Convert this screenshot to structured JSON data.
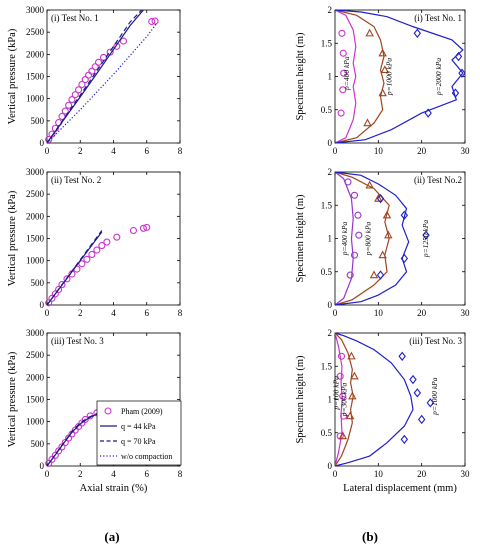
{
  "figure": {
    "label_a": "(a)",
    "label_b": "(b)"
  },
  "colors": {
    "axis": "#000000",
    "magenta": "#cc33cc",
    "brown": "#a0441e",
    "blue": "#1f1fcc",
    "navy": "#1a1a8c",
    "purple": "#9933cc"
  },
  "legend": {
    "entries": [
      "Pham (2009)",
      "q = 44 kPa",
      "q = 70 kPa",
      "w/o compaction"
    ]
  },
  "chart_data": [
    {
      "id": "a1",
      "type": "line",
      "title": "(i) Test No. 1",
      "xlabel": "",
      "ylabel": "Vertical pressure (kPa)",
      "xlim": [
        0,
        8
      ],
      "ylim": [
        0,
        3000
      ],
      "xticks": [
        0,
        2,
        4,
        6,
        8
      ],
      "yticks": [
        0,
        500,
        1000,
        1500,
        2000,
        2500,
        3000
      ],
      "series": [
        {
          "name": "Pham (2009)",
          "style": "markers-circle",
          "x": [
            0.1,
            0.3,
            0.5,
            0.7,
            0.9,
            1.1,
            1.3,
            1.5,
            1.7,
            1.9,
            2.1,
            2.3,
            2.5,
            2.7,
            2.9,
            3.1,
            3.4,
            3.8,
            4.2,
            4.6,
            6.3,
            6.5
          ],
          "y": [
            80,
            200,
            330,
            460,
            600,
            720,
            850,
            980,
            1090,
            1200,
            1320,
            1430,
            1530,
            1620,
            1720,
            1820,
            1930,
            2050,
            2180,
            2300,
            2740,
            2750
          ]
        },
        {
          "name": "q = 44 kPa",
          "style": "solid",
          "x": [
            0,
            1,
            2,
            3,
            4,
            5,
            5.8
          ],
          "y": [
            0,
            520,
            1040,
            1570,
            2110,
            2650,
            3000
          ]
        },
        {
          "name": "q = 70 kPa",
          "style": "dashed",
          "x": [
            0,
            1,
            2,
            3,
            4,
            5,
            5.7
          ],
          "y": [
            0,
            540,
            1080,
            1630,
            2180,
            2730,
            3000
          ]
        },
        {
          "name": "w/o compaction",
          "style": "dotted",
          "x": [
            0,
            2,
            4,
            6,
            6.6
          ],
          "y": [
            0,
            750,
            1550,
            2400,
            2700
          ]
        }
      ]
    },
    {
      "id": "a2",
      "type": "line",
      "title": "(ii) Test No. 2",
      "xlabel": "",
      "ylabel": "Vertical pressure (kPa)",
      "xlim": [
        0,
        8
      ],
      "ylim": [
        0,
        3000
      ],
      "xticks": [
        0,
        2,
        4,
        6,
        8
      ],
      "yticks": [
        0,
        500,
        1000,
        1500,
        2000,
        2500,
        3000
      ],
      "series": [
        {
          "name": "Pham (2009)",
          "style": "markers-circle",
          "x": [
            0.1,
            0.3,
            0.5,
            0.7,
            0.9,
            1.2,
            1.5,
            1.8,
            2.1,
            2.4,
            2.7,
            3.0,
            3.3,
            3.6,
            4.2,
            5.2,
            5.8,
            6.0
          ],
          "y": [
            50,
            150,
            250,
            350,
            460,
            590,
            700,
            810,
            930,
            1030,
            1140,
            1240,
            1340,
            1420,
            1530,
            1680,
            1730,
            1750
          ]
        },
        {
          "name": "q = 44 kPa",
          "style": "solid",
          "x": [
            0,
            1,
            2,
            3,
            3.3
          ],
          "y": [
            0,
            500,
            1000,
            1500,
            1650
          ]
        },
        {
          "name": "q = 70 kPa",
          "style": "dashed",
          "x": [
            0,
            1,
            2,
            3,
            3.3
          ],
          "y": [
            0,
            510,
            1020,
            1530,
            1680
          ]
        }
      ]
    },
    {
      "id": "a3",
      "type": "line",
      "title": "(iii) Test No. 3",
      "xlabel": "Axial strain (%)",
      "ylabel": "Vertical pressure (kPa)",
      "xlim": [
        0,
        8
      ],
      "ylim": [
        0,
        3000
      ],
      "xticks": [
        0,
        2,
        4,
        6,
        8
      ],
      "yticks": [
        0,
        500,
        1000,
        1500,
        2000,
        2500,
        3000
      ],
      "series": [
        {
          "name": "Pham (2009)",
          "style": "markers-circle",
          "x": [
            0.1,
            0.3,
            0.5,
            0.7,
            0.9,
            1.1,
            1.3,
            1.5,
            1.7,
            1.9,
            2.1,
            2.3,
            2.6,
            3.0,
            3.5,
            4.0
          ],
          "y": [
            60,
            150,
            240,
            340,
            430,
            530,
            630,
            720,
            810,
            890,
            970,
            1050,
            1130,
            1200,
            1270,
            1300
          ]
        },
        {
          "name": "q = 44 kPa",
          "style": "solid",
          "x": [
            0,
            0.5,
            1,
            1.5,
            2,
            2.5,
            3,
            3.3
          ],
          "y": [
            0,
            250,
            510,
            760,
            950,
            1080,
            1170,
            1200
          ]
        },
        {
          "name": "q = 70 kPa",
          "style": "dashed",
          "x": [
            0,
            0.5,
            1,
            1.5,
            2,
            2.5,
            3,
            3.3
          ],
          "y": [
            0,
            260,
            520,
            780,
            970,
            1100,
            1180,
            1210
          ]
        }
      ]
    },
    {
      "id": "b1",
      "type": "line",
      "title": "(i) Test No. 1",
      "xlabel": "",
      "ylabel": "Specimen height (m)",
      "xlim": [
        0,
        30
      ],
      "ylim": [
        0,
        2
      ],
      "xticks": [
        0,
        10,
        20,
        30
      ],
      "yticks": [
        0,
        0.5,
        1,
        1.5,
        2
      ],
      "series": [
        {
          "name": "p=400 kPa",
          "style": "solid",
          "color": "magenta",
          "x": [
            0,
            2.5,
            4.2,
            4.8,
            4.2,
            4.8,
            4.2,
            4.8,
            4.2,
            2.5,
            0
          ],
          "y": [
            0,
            0.08,
            0.35,
            0.6,
            0.85,
            1.0,
            1.2,
            1.45,
            1.7,
            1.92,
            2
          ]
        },
        {
          "name": "p=1000 kPa",
          "style": "solid",
          "color": "brown",
          "x": [
            0,
            5,
            9,
            11,
            10.5,
            11.3,
            10.5,
            11.3,
            10.5,
            9,
            5,
            0
          ],
          "y": [
            0,
            0.08,
            0.3,
            0.5,
            0.7,
            0.9,
            1.1,
            1.3,
            1.55,
            1.75,
            1.92,
            2
          ]
        },
        {
          "name": "p=2000 kPa",
          "style": "solid",
          "color": "blue",
          "x": [
            0,
            7,
            13,
            20,
            28,
            27,
            29.5,
            27,
            29.5,
            27,
            18,
            12,
            6,
            0
          ],
          "y": [
            0,
            0.05,
            0.2,
            0.45,
            0.65,
            0.85,
            1.05,
            1.25,
            1.4,
            1.55,
            1.75,
            1.9,
            1.97,
            2
          ]
        },
        {
          "name": "",
          "style": "markers-circle",
          "color": "magenta",
          "x": [
            1.4,
            1.8,
            2,
            1.9,
            1.6
          ],
          "y": [
            0.45,
            0.8,
            1.05,
            1.35,
            1.65
          ]
        },
        {
          "name": "",
          "style": "markers-triangle",
          "color": "brown",
          "x": [
            7.5,
            11,
            11.5,
            11,
            8
          ],
          "y": [
            0.3,
            0.75,
            1.1,
            1.35,
            1.65
          ]
        },
        {
          "name": "",
          "style": "markers-diamond",
          "color": "blue",
          "x": [
            21.5,
            27.8,
            29.3,
            28.5,
            19
          ],
          "y": [
            0.45,
            0.75,
            1.05,
            1.3,
            1.65
          ]
        }
      ],
      "annotations": [
        "p=400 kPa",
        "p=1000 kPa",
        "p=2000 kPa"
      ]
    },
    {
      "id": "b2",
      "type": "line",
      "title": "(ii) Test No.2",
      "xlabel": "",
      "ylabel": "Specimen height (m)",
      "xlim": [
        0,
        30
      ],
      "ylim": [
        0,
        2
      ],
      "xticks": [
        0,
        10,
        20,
        30
      ],
      "yticks": [
        0,
        0.5,
        1,
        1.5,
        2
      ],
      "series": [
        {
          "name": "p=400 kPa",
          "style": "solid",
          "color": "purple",
          "x": [
            0,
            2,
            3.8,
            4.2,
            3.8,
            4.2,
            3.8,
            2,
            0
          ],
          "y": [
            0,
            0.1,
            0.4,
            0.7,
            1.0,
            1.3,
            1.6,
            1.9,
            2
          ]
        },
        {
          "name": "p=800 kPa",
          "style": "solid",
          "color": "brown",
          "x": [
            0,
            4,
            9,
            12,
            11.5,
            12.5,
            11.5,
            12.5,
            9,
            4,
            0
          ],
          "y": [
            0,
            0.08,
            0.3,
            0.5,
            0.75,
            1.0,
            1.25,
            1.5,
            1.75,
            1.92,
            2
          ]
        },
        {
          "name": "p=1250 kPa",
          "style": "solid",
          "color": "blue",
          "x": [
            0,
            6,
            10,
            14,
            16.5,
            15.5,
            17,
            15.5,
            16.5,
            14,
            10,
            6,
            0
          ],
          "y": [
            0,
            0.05,
            0.15,
            0.3,
            0.5,
            0.7,
            0.95,
            1.2,
            1.45,
            1.65,
            1.82,
            1.95,
            2
          ]
        },
        {
          "name": "",
          "style": "markers-circle",
          "color": "purple",
          "x": [
            3.5,
            4.5,
            5.5,
            5.3,
            4.5,
            3
          ],
          "y": [
            0.45,
            0.75,
            1.05,
            1.35,
            1.65,
            1.85
          ]
        },
        {
          "name": "",
          "style": "markers-triangle",
          "color": "brown",
          "x": [
            9,
            11,
            12.3,
            12,
            10,
            8
          ],
          "y": [
            0.45,
            0.75,
            1.05,
            1.35,
            1.6,
            1.8
          ]
        },
        {
          "name": "",
          "style": "markers-diamond",
          "color": "blue",
          "x": [
            10.5,
            16,
            21,
            16,
            10.5
          ],
          "y": [
            0.45,
            0.7,
            1.05,
            1.35,
            1.6
          ]
        }
      ],
      "annotations": [
        "p=400 kPa",
        "p=800 kPa",
        "p=1250 kPa"
      ]
    },
    {
      "id": "b3",
      "type": "line",
      "title": "(iii) Test No. 3",
      "xlabel": "Lateral displacement (mm)",
      "ylabel": "Specimen height (m)",
      "xlim": [
        0,
        30
      ],
      "ylim": [
        0,
        2
      ],
      "xticks": [
        0,
        10,
        20,
        30
      ],
      "yticks": [
        0,
        0.5,
        1,
        1.5,
        2
      ],
      "series": [
        {
          "name": "p=100 kPa",
          "style": "solid",
          "color": "magenta",
          "x": [
            0,
            0.8,
            1.6,
            1.4,
            1.7,
            1.4,
            1.6,
            0.8,
            0
          ],
          "y": [
            0,
            0.2,
            0.5,
            0.8,
            1.0,
            1.25,
            1.5,
            1.8,
            2
          ]
        },
        {
          "name": "p=300 kPa",
          "style": "solid",
          "color": "brown",
          "x": [
            0,
            1.5,
            3,
            4,
            3.6,
            4.2,
            3.6,
            4,
            3,
            1.5,
            0
          ],
          "y": [
            0,
            0.15,
            0.4,
            0.65,
            0.85,
            1.05,
            1.25,
            1.45,
            1.7,
            1.9,
            2
          ]
        },
        {
          "name": "p=1000 kPa",
          "style": "solid",
          "color": "blue",
          "x": [
            0,
            3,
            8,
            12,
            16,
            18,
            17.5,
            16,
            13,
            9,
            5,
            2,
            0
          ],
          "y": [
            0,
            0.05,
            0.15,
            0.35,
            0.6,
            0.85,
            1.05,
            1.3,
            1.55,
            1.75,
            1.88,
            1.96,
            2
          ]
        },
        {
          "name": "",
          "style": "markers-circle",
          "color": "magenta",
          "x": [
            1.2,
            2,
            1.8,
            1.2,
            1.5
          ],
          "y": [
            0.45,
            0.75,
            1.05,
            1.35,
            1.65
          ]
        },
        {
          "name": "",
          "style": "markers-triangle",
          "color": "brown",
          "x": [
            1.8,
            3.5,
            4,
            4.5,
            3.8
          ],
          "y": [
            0.45,
            0.75,
            1.05,
            1.35,
            1.65
          ]
        },
        {
          "name": "",
          "style": "markers-diamond",
          "color": "blue",
          "x": [
            16,
            20,
            22,
            19,
            18,
            15.5
          ],
          "y": [
            0.4,
            0.7,
            0.95,
            1.1,
            1.3,
            1.65
          ]
        }
      ],
      "annotations": [
        "p=100 kPa",
        "p=300 kPa",
        "p=1000 kPa"
      ]
    }
  ]
}
